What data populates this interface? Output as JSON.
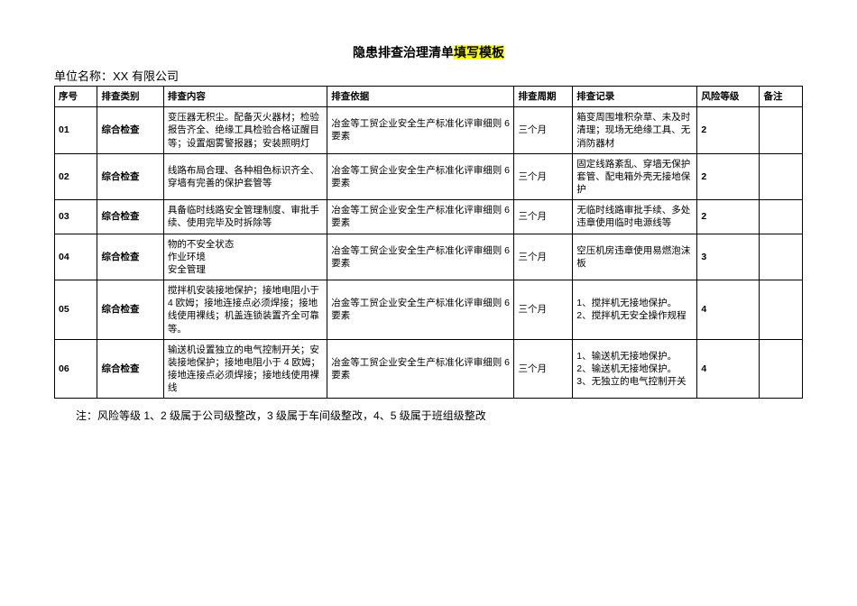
{
  "title_prefix": "隐患排查治理清单",
  "title_highlight": "填写模板",
  "company_label": "单位名称：XX 有限公司",
  "columns": [
    "序号",
    "排查类别",
    "排查内容",
    "排查依据",
    "排查周期",
    "排查记录",
    "风险等级",
    "备注"
  ],
  "rows": [
    {
      "seq": "01",
      "cat": "综合检查",
      "content": "变压器无积尘。配备灭火器材；检验报告齐全、绝缘工具检验合格证醒目等；设置烟雾警报器；安装照明灯",
      "basis": "冶金等工贸企业安全生产标准化评审细则 6 要素",
      "cycle": "三个月",
      "record": "箱变周围堆积杂草、未及时清理；现场无绝缘工具、无消防器材",
      "risk": "2",
      "note": ""
    },
    {
      "seq": "02",
      "cat": "综合检查",
      "content": "线路布局合理、各种相色标识齐全、穿墙有完善的保护套管等",
      "basis": "冶金等工贸企业安全生产标准化评审细则 6 要素",
      "cycle": "三个月",
      "record": "固定线路紊乱、穿墙无保护套管、配电箱外壳无接地保护",
      "risk": "2",
      "note": ""
    },
    {
      "seq": "03",
      "cat": "综合检查",
      "content": "具备临时线路安全管理制度、审批手续、使用完毕及时拆除等",
      "basis": "冶金等工贸企业安全生产标准化评审细则 6 要素",
      "cycle": "三个月",
      "record": "无临时线路审批手续、多处违章使用临时电源线等",
      "risk": "2",
      "note": ""
    },
    {
      "seq": "04",
      "cat": "综合检查",
      "content": "物的不安全状态\n作业环境\n安全管理",
      "basis": "冶金等工贸企业安全生产标准化评审细则 6 要素",
      "cycle": "三个月",
      "record": "空压机房违章使用易燃泡沫板",
      "risk": "3",
      "note": ""
    },
    {
      "seq": "05",
      "cat": "综合检查",
      "content": "搅拌机安装接地保护；接地电阻小于 4 欧姆；接地连接点必须焊接；接地线使用裸线；机盖连锁装置齐全可靠等。",
      "basis": "冶金等工贸企业安全生产标准化评审细则 6 要素",
      "cycle": "三个月",
      "record": "1、搅拌机无接地保护。\n2、搅拌机无安全操作规程",
      "risk": "4",
      "note": ""
    },
    {
      "seq": "06",
      "cat": "综合检查",
      "content": "输送机设置独立的电气控制开关；安装接地保护；接地电阻小于 4 欧姆；接地连接点必须焊接；接地线使用裸线",
      "basis": "冶金等工贸企业安全生产标准化评审细则 6 要素",
      "cycle": "三个月",
      "record": "1、输送机无接地保护。\n2、输送机无接地保护。\n3、无独立的电气控制开关",
      "risk": "4",
      "note": ""
    }
  ],
  "footnote": "注：风险等级 1、2 级属于公司级整改，3 级属于车间级整改，4、5 级属于班组级整改",
  "colors": {
    "highlight_bg": "#ffff00",
    "border": "#000000",
    "text": "#000000",
    "bg": "#ffffff"
  },
  "typography": {
    "title_fontsize_pt": 11,
    "body_fontsize_pt": 8,
    "font_family": "SimSun"
  },
  "table": {
    "type": "table",
    "col_widths_pct": [
      5.5,
      8.5,
      21,
      24,
      7.5,
      16,
      8,
      5.5
    ]
  }
}
